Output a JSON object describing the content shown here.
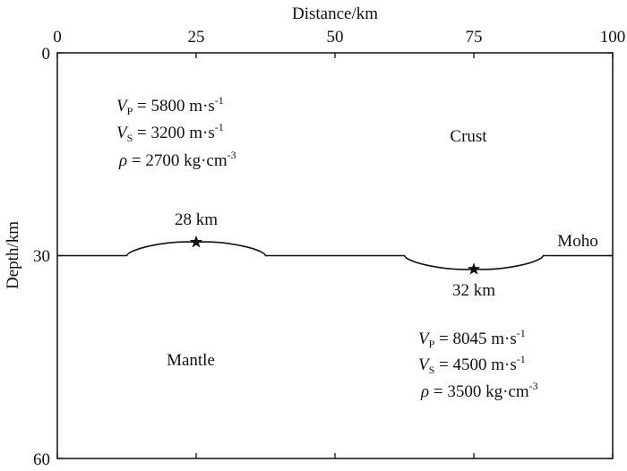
{
  "axes": {
    "x_label": "Distance/km",
    "y_label": "Depth/km",
    "x_ticks": [
      "0",
      "25",
      "50",
      "75",
      "100"
    ],
    "y_ticks": [
      "0",
      "30",
      "60"
    ]
  },
  "layers": {
    "upper_name": "Crust",
    "lower_name": "Mantle",
    "boundary_name": "Moho"
  },
  "crust_params": {
    "vp": {
      "sym": "V",
      "sub": "P",
      "val": " = 5800 m·s",
      "sup": "-1"
    },
    "vs": {
      "sym": "V",
      "sub": "S",
      "val": " = 3200 m·s",
      "sup": "-1"
    },
    "rho": {
      "sym": "ρ",
      "val": " = 2700 kg·cm",
      "sup": "-3"
    }
  },
  "mantle_params": {
    "vp": {
      "sym": "V",
      "sub": "P",
      "val": " = 8045 m·s",
      "sup": "-1"
    },
    "vs": {
      "sym": "V",
      "sub": "S",
      "val": " = 4500 m·s",
      "sup": "-1"
    },
    "rho": {
      "sym": "ρ",
      "val": " = 3500 kg·cm",
      "sup": "-3"
    }
  },
  "annotations": {
    "uplift_depth": "28 km",
    "depression_depth": "32 km"
  },
  "chart_data": {
    "type": "line",
    "xlim": [
      0,
      100
    ],
    "ylim": [
      0,
      60
    ],
    "y_inverted": true,
    "moho_depth": 30,
    "uplift": {
      "x_start": 12.5,
      "x_end": 37.5,
      "x_peak": 25,
      "depth": 28
    },
    "depression": {
      "x_start": 62.5,
      "x_end": 87.5,
      "x_peak": 75,
      "depth": 32
    }
  }
}
